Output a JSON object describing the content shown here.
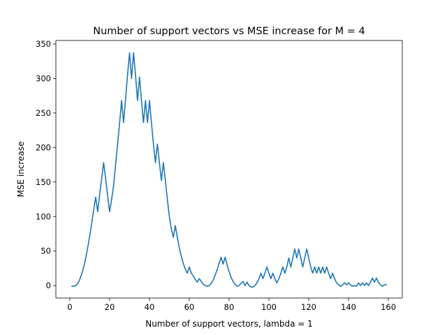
{
  "chart_data": {
    "type": "line",
    "title": "Number of support vectors vs MSE increase for M = 4",
    "xlabel": "Number of support vectors, lambda = 1",
    "ylabel": "MSE increase",
    "xlim": [
      -7,
      167
    ],
    "ylim": [
      -18,
      355
    ],
    "xticks": [
      0,
      20,
      40,
      60,
      80,
      100,
      120,
      140,
      160
    ],
    "yticks": [
      0,
      50,
      100,
      150,
      200,
      250,
      300,
      350
    ],
    "grid": false,
    "legend": "none",
    "color": "#1f77b4",
    "series": [
      {
        "x": [
          1,
          2,
          3,
          4,
          5,
          6,
          7,
          8,
          9,
          10,
          11,
          12,
          13,
          14,
          15,
          16,
          17,
          18,
          19,
          20,
          21,
          22,
          23,
          24,
          25,
          26,
          27,
          28,
          29,
          30,
          31,
          32,
          33,
          34,
          35,
          36,
          37,
          38,
          39,
          40,
          41,
          42,
          43,
          44,
          45,
          46,
          47,
          48,
          49,
          50,
          51,
          52,
          53,
          54,
          55,
          56,
          57,
          58,
          59,
          60,
          61,
          62,
          63,
          64,
          65,
          66,
          67,
          68,
          69,
          70,
          71,
          72,
          73,
          74,
          75,
          76,
          77,
          78,
          79,
          80,
          81,
          82,
          83,
          84,
          85,
          86,
          87,
          88,
          89,
          90,
          91,
          92,
          93,
          94,
          95,
          96,
          97,
          98,
          99,
          100,
          101,
          102,
          103,
          104,
          105,
          106,
          107,
          108,
          109,
          110,
          111,
          112,
          113,
          114,
          115,
          116,
          117,
          118,
          119,
          120,
          121,
          122,
          123,
          124,
          125,
          126,
          127,
          128,
          129,
          130,
          131,
          132,
          133,
          134,
          135,
          136,
          137,
          138,
          139,
          140,
          141,
          142,
          143,
          144,
          145,
          146,
          147,
          148,
          149,
          150,
          151,
          152,
          153,
          154,
          155,
          156,
          157,
          158,
          159
        ],
        "values": [
          -1,
          -1,
          0,
          3,
          9,
          17,
          27,
          40,
          55,
          72,
          90,
          110,
          128,
          107,
          132,
          155,
          178,
          155,
          130,
          107,
          125,
          145,
          175,
          205,
          235,
          268,
          236,
          270,
          305,
          337,
          300,
          337,
          305,
          268,
          302,
          268,
          236,
          268,
          236,
          268,
          236,
          205,
          178,
          205,
          178,
          152,
          178,
          152,
          125,
          100,
          82,
          70,
          87,
          70,
          55,
          42,
          32,
          24,
          18,
          27,
          18,
          14,
          9,
          5,
          10,
          6,
          2,
          0,
          -1,
          0,
          3,
          8,
          15,
          23,
          32,
          41,
          31,
          41,
          30,
          20,
          12,
          6,
          2,
          -1,
          0,
          3,
          6,
          0,
          5,
          0,
          -2,
          -2,
          0,
          4,
          10,
          18,
          10,
          18,
          27,
          18,
          10,
          18,
          10,
          4,
          10,
          18,
          27,
          18,
          27,
          40,
          27,
          40,
          53,
          40,
          53,
          40,
          27,
          40,
          53,
          40,
          27,
          18,
          27,
          18,
          27,
          18,
          27,
          18,
          27,
          18,
          10,
          18,
          10,
          4,
          1,
          -1,
          1,
          4,
          1,
          4,
          1,
          -1,
          0,
          -1,
          4,
          0,
          4,
          0,
          4,
          0,
          5,
          11,
          5,
          11,
          5,
          1,
          -1,
          1,
          1
        ]
      }
    ]
  }
}
